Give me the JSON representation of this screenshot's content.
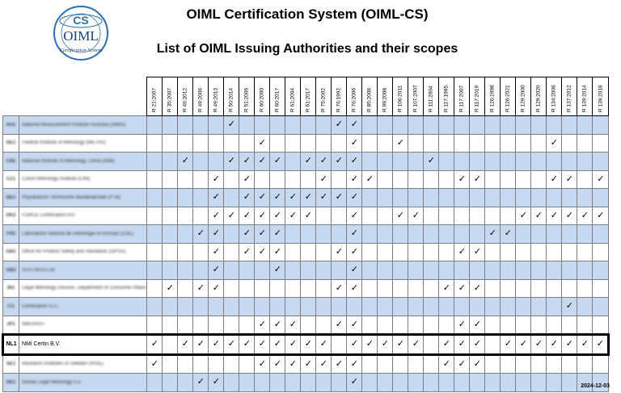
{
  "header": {
    "logo": {
      "cs": "CS",
      "oiml": "OIML",
      "ring_text": "Certification System"
    },
    "title": "OIML Certification System (OIML-CS)",
    "subtitle": "List of OIML Issuing Authorities and their scopes"
  },
  "columns": [
    "R 21:2007",
    "R 35:2007",
    "R 46:2012",
    "R 49:2006",
    "R 49:2013",
    "R 50:2014",
    "R 51:2006",
    "R 60:2000",
    "R 60:2017",
    "R 61:2004",
    "R 61:2017",
    "R 75:2002",
    "R 76:1992",
    "R 76:2006",
    "R 85:2008",
    "R 99:2008",
    "R 106:2011",
    "R 107:2007",
    "R 111:2004",
    "R 117:1995",
    "R 117:2007",
    "R 117:2019",
    "R 126:1998",
    "R 126:2021",
    "R 129:2000",
    "R 129:2020",
    "R 134:2006",
    "R 137:2012",
    "R 139:2014",
    "R 139:2018"
  ],
  "check_glyph": "✓",
  "rows": [
    {
      "code": "AU1",
      "name": "National Measurement Institute Australia (NMIA)",
      "blurred": true,
      "checks": [
        5,
        12,
        13
      ]
    },
    {
      "code": "DE1",
      "name": "Federal Institute of Metrology (METAS)",
      "blurred": true,
      "checks": [
        7,
        13,
        16,
        26
      ]
    },
    {
      "code": "CN1",
      "name": "National Institute of Metrology, China (NIM)",
      "blurred": true,
      "checks": [
        2,
        5,
        6,
        7,
        8,
        10,
        11,
        12,
        13,
        18
      ]
    },
    {
      "code": "CZ1",
      "name": "Czech Metrology Institute (CMI)",
      "blurred": true,
      "checks": [
        4,
        6,
        11,
        13,
        14,
        20,
        21,
        26,
        27,
        29
      ]
    },
    {
      "code": "DE1",
      "name": "Physikalisch-Technische Bundesanstalt (PTB)",
      "blurred": true,
      "checks": [
        4,
        6,
        7,
        8,
        9,
        10,
        11,
        12,
        13
      ]
    },
    {
      "code": "DK2",
      "name": "FORCE Certification A/S",
      "blurred": true,
      "checks": [
        4,
        5,
        6,
        7,
        8,
        9,
        10,
        13,
        16,
        17,
        24,
        25,
        26,
        27,
        28,
        29
      ]
    },
    {
      "code": "FR2",
      "name": "Laboratoire national de métrologie et d'essais (LNE)",
      "blurred": true,
      "checks": [
        3,
        4,
        6,
        7,
        8,
        13,
        22,
        23
      ]
    },
    {
      "code": "GB1",
      "name": "Office for Product Safety and Standards (OPSS)",
      "blurred": true,
      "checks": [
        4,
        6,
        7,
        8,
        12,
        13,
        20,
        21
      ]
    },
    {
      "code": "GB2",
      "name": "SGS UKAS Ltd",
      "blurred": true,
      "checks": [
        4,
        8,
        13
      ]
    },
    {
      "code": "IN1",
      "name": "Legal Metrology Division, Department of Consumer Affairs",
      "blurred": true,
      "checks": [
        1,
        3,
        4,
        12,
        13,
        19,
        20,
        21
      ]
    },
    {
      "code": "IT1",
      "name": "Certification S.r.l.",
      "blurred": true,
      "checks": [
        27
      ]
    },
    {
      "code": "JP1",
      "name": "NMIJ/AIST",
      "blurred": true,
      "checks": [
        7,
        8,
        9,
        12,
        13,
        20,
        21
      ]
    },
    {
      "code": "NL1",
      "name": "NMi Certin B.V.",
      "blurred": false,
      "highlight": true,
      "checks": [
        0,
        2,
        3,
        4,
        5,
        6,
        7,
        8,
        9,
        10,
        11,
        13,
        14,
        15,
        16,
        17,
        19,
        20,
        21,
        23,
        24,
        25,
        26,
        27,
        28,
        29
      ]
    },
    {
      "code": "SE1",
      "name": "Research Institutes of Sweden (RISE)",
      "blurred": true,
      "checks": [
        0,
        7,
        8,
        9,
        10,
        11,
        12,
        13,
        19,
        20,
        21
      ]
    },
    {
      "code": "SK1",
      "name": "Slovak Legal Metrology n.o.",
      "blurred": true,
      "checks": [
        3,
        4,
        13
      ]
    }
  ],
  "date": "2024-12-03"
}
